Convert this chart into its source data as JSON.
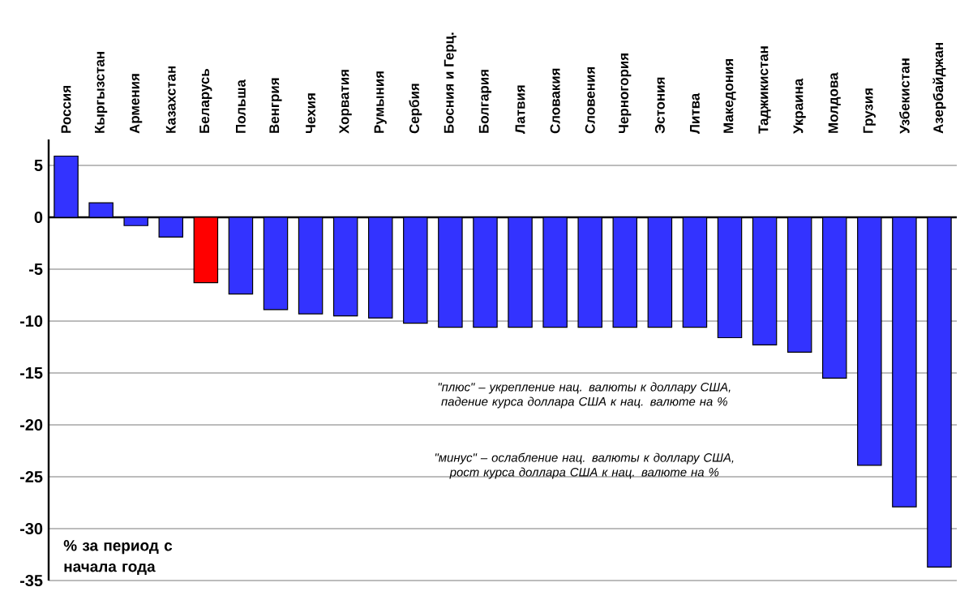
{
  "chart_data": {
    "type": "bar",
    "ylabel": "% за период с начала года",
    "categories": [
      "Россия",
      "Кыргызстан",
      "Армения",
      "Казахстан",
      "Беларусь",
      "Польша",
      "Венгрия",
      "Чехия",
      "Хорватия",
      "Румыния",
      "Сербия",
      "Босния и Герц.",
      "Болгария",
      "Латвия",
      "Словакия",
      "Словения",
      "Черногория",
      "Эстония",
      "Литва",
      "Македония",
      "Таджикистан",
      "Украина",
      "Молдова",
      "Грузия",
      "Узбекистан",
      "Азербайджан"
    ],
    "values": [
      5.9,
      1.4,
      -0.8,
      -1.9,
      -6.3,
      -7.4,
      -8.9,
      -9.3,
      -9.5,
      -9.7,
      -10.2,
      -10.6,
      -10.6,
      -10.6,
      -10.6,
      -10.6,
      -10.6,
      -10.6,
      -10.6,
      -11.6,
      -12.3,
      -13.0,
      -15.5,
      -23.9,
      -27.9,
      -33.7
    ],
    "colors": [
      "#3333ff",
      "#3333ff",
      "#3333ff",
      "#3333ff",
      "#ff0000",
      "#3333ff",
      "#3333ff",
      "#3333ff",
      "#3333ff",
      "#3333ff",
      "#3333ff",
      "#3333ff",
      "#3333ff",
      "#3333ff",
      "#3333ff",
      "#3333ff",
      "#3333ff",
      "#3333ff",
      "#3333ff",
      "#3333ff",
      "#3333ff",
      "#3333ff",
      "#3333ff",
      "#3333ff",
      "#3333ff",
      "#3333ff"
    ],
    "ylim": [
      -35,
      7.5
    ],
    "yticks": [
      -35,
      -30,
      -25,
      -20,
      -15,
      -10,
      -5,
      0,
      5
    ],
    "grid": "y",
    "annotations": [
      "\"плюс\" – укрепление нац. валюты к доллару США, падение курса доллара США к нац. валюте на %",
      "\"минус\" – ослабление нац. валюты к доллару США, рост курса доллара США к нац. валюте на %"
    ]
  }
}
